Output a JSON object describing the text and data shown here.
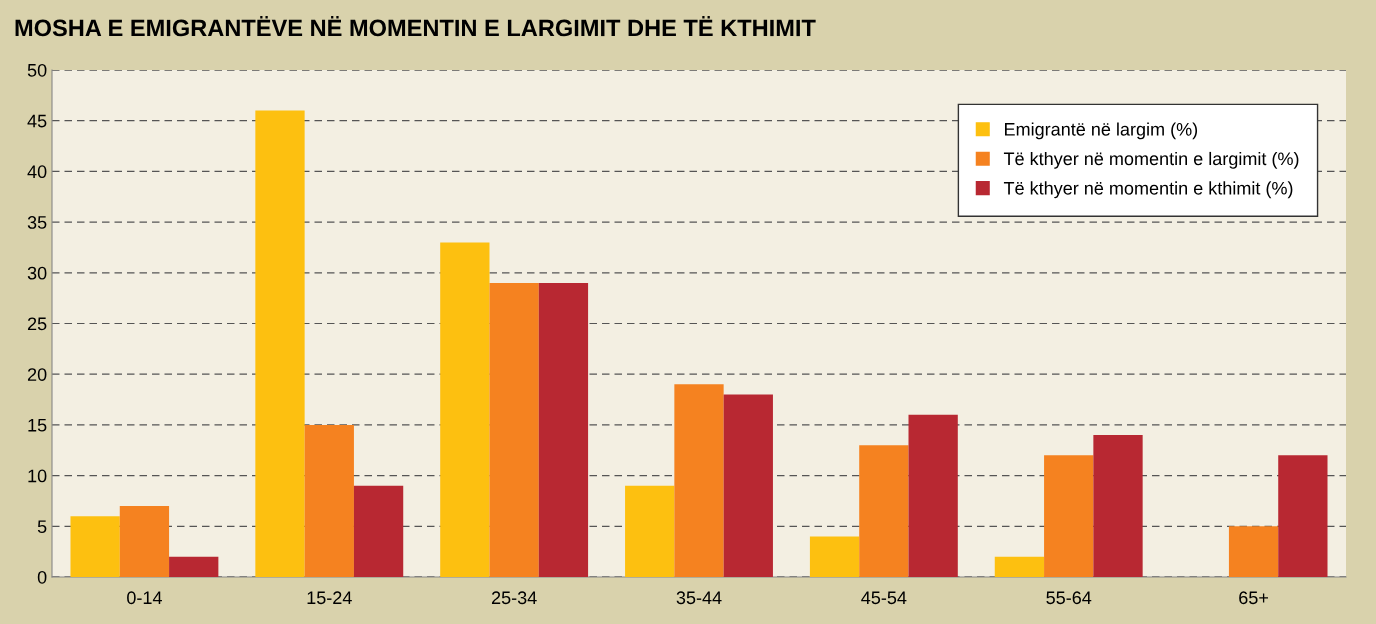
{
  "chart_data": {
    "type": "bar",
    "title": "MOSHA E EMIGRANTËVE NË MOMENTIN E LARGIMIT DHE TË KTHIMIT",
    "categories": [
      "0-14",
      "15-24",
      "25-34",
      "35-44",
      "45-54",
      "55-64",
      "65+"
    ],
    "series": [
      {
        "name": "Emigrantë në largim (%)",
        "color": "#fdc010",
        "values": [
          6,
          46,
          33,
          9,
          4,
          2,
          0
        ]
      },
      {
        "name": "Të kthyer në momentin e largimit (%)",
        "color": "#f58220",
        "values": [
          7,
          15,
          29,
          19,
          13,
          12,
          5
        ]
      },
      {
        "name": "Të kthyer në momentin e kthimit (%)",
        "color": "#b82832",
        "values": [
          2,
          9,
          29,
          18,
          16,
          14,
          12
        ]
      }
    ],
    "ylim": [
      0,
      50
    ],
    "yticks": [
      0,
      5,
      10,
      15,
      20,
      25,
      30,
      35,
      40,
      45,
      50
    ],
    "grid": "y",
    "legend": "top right"
  }
}
